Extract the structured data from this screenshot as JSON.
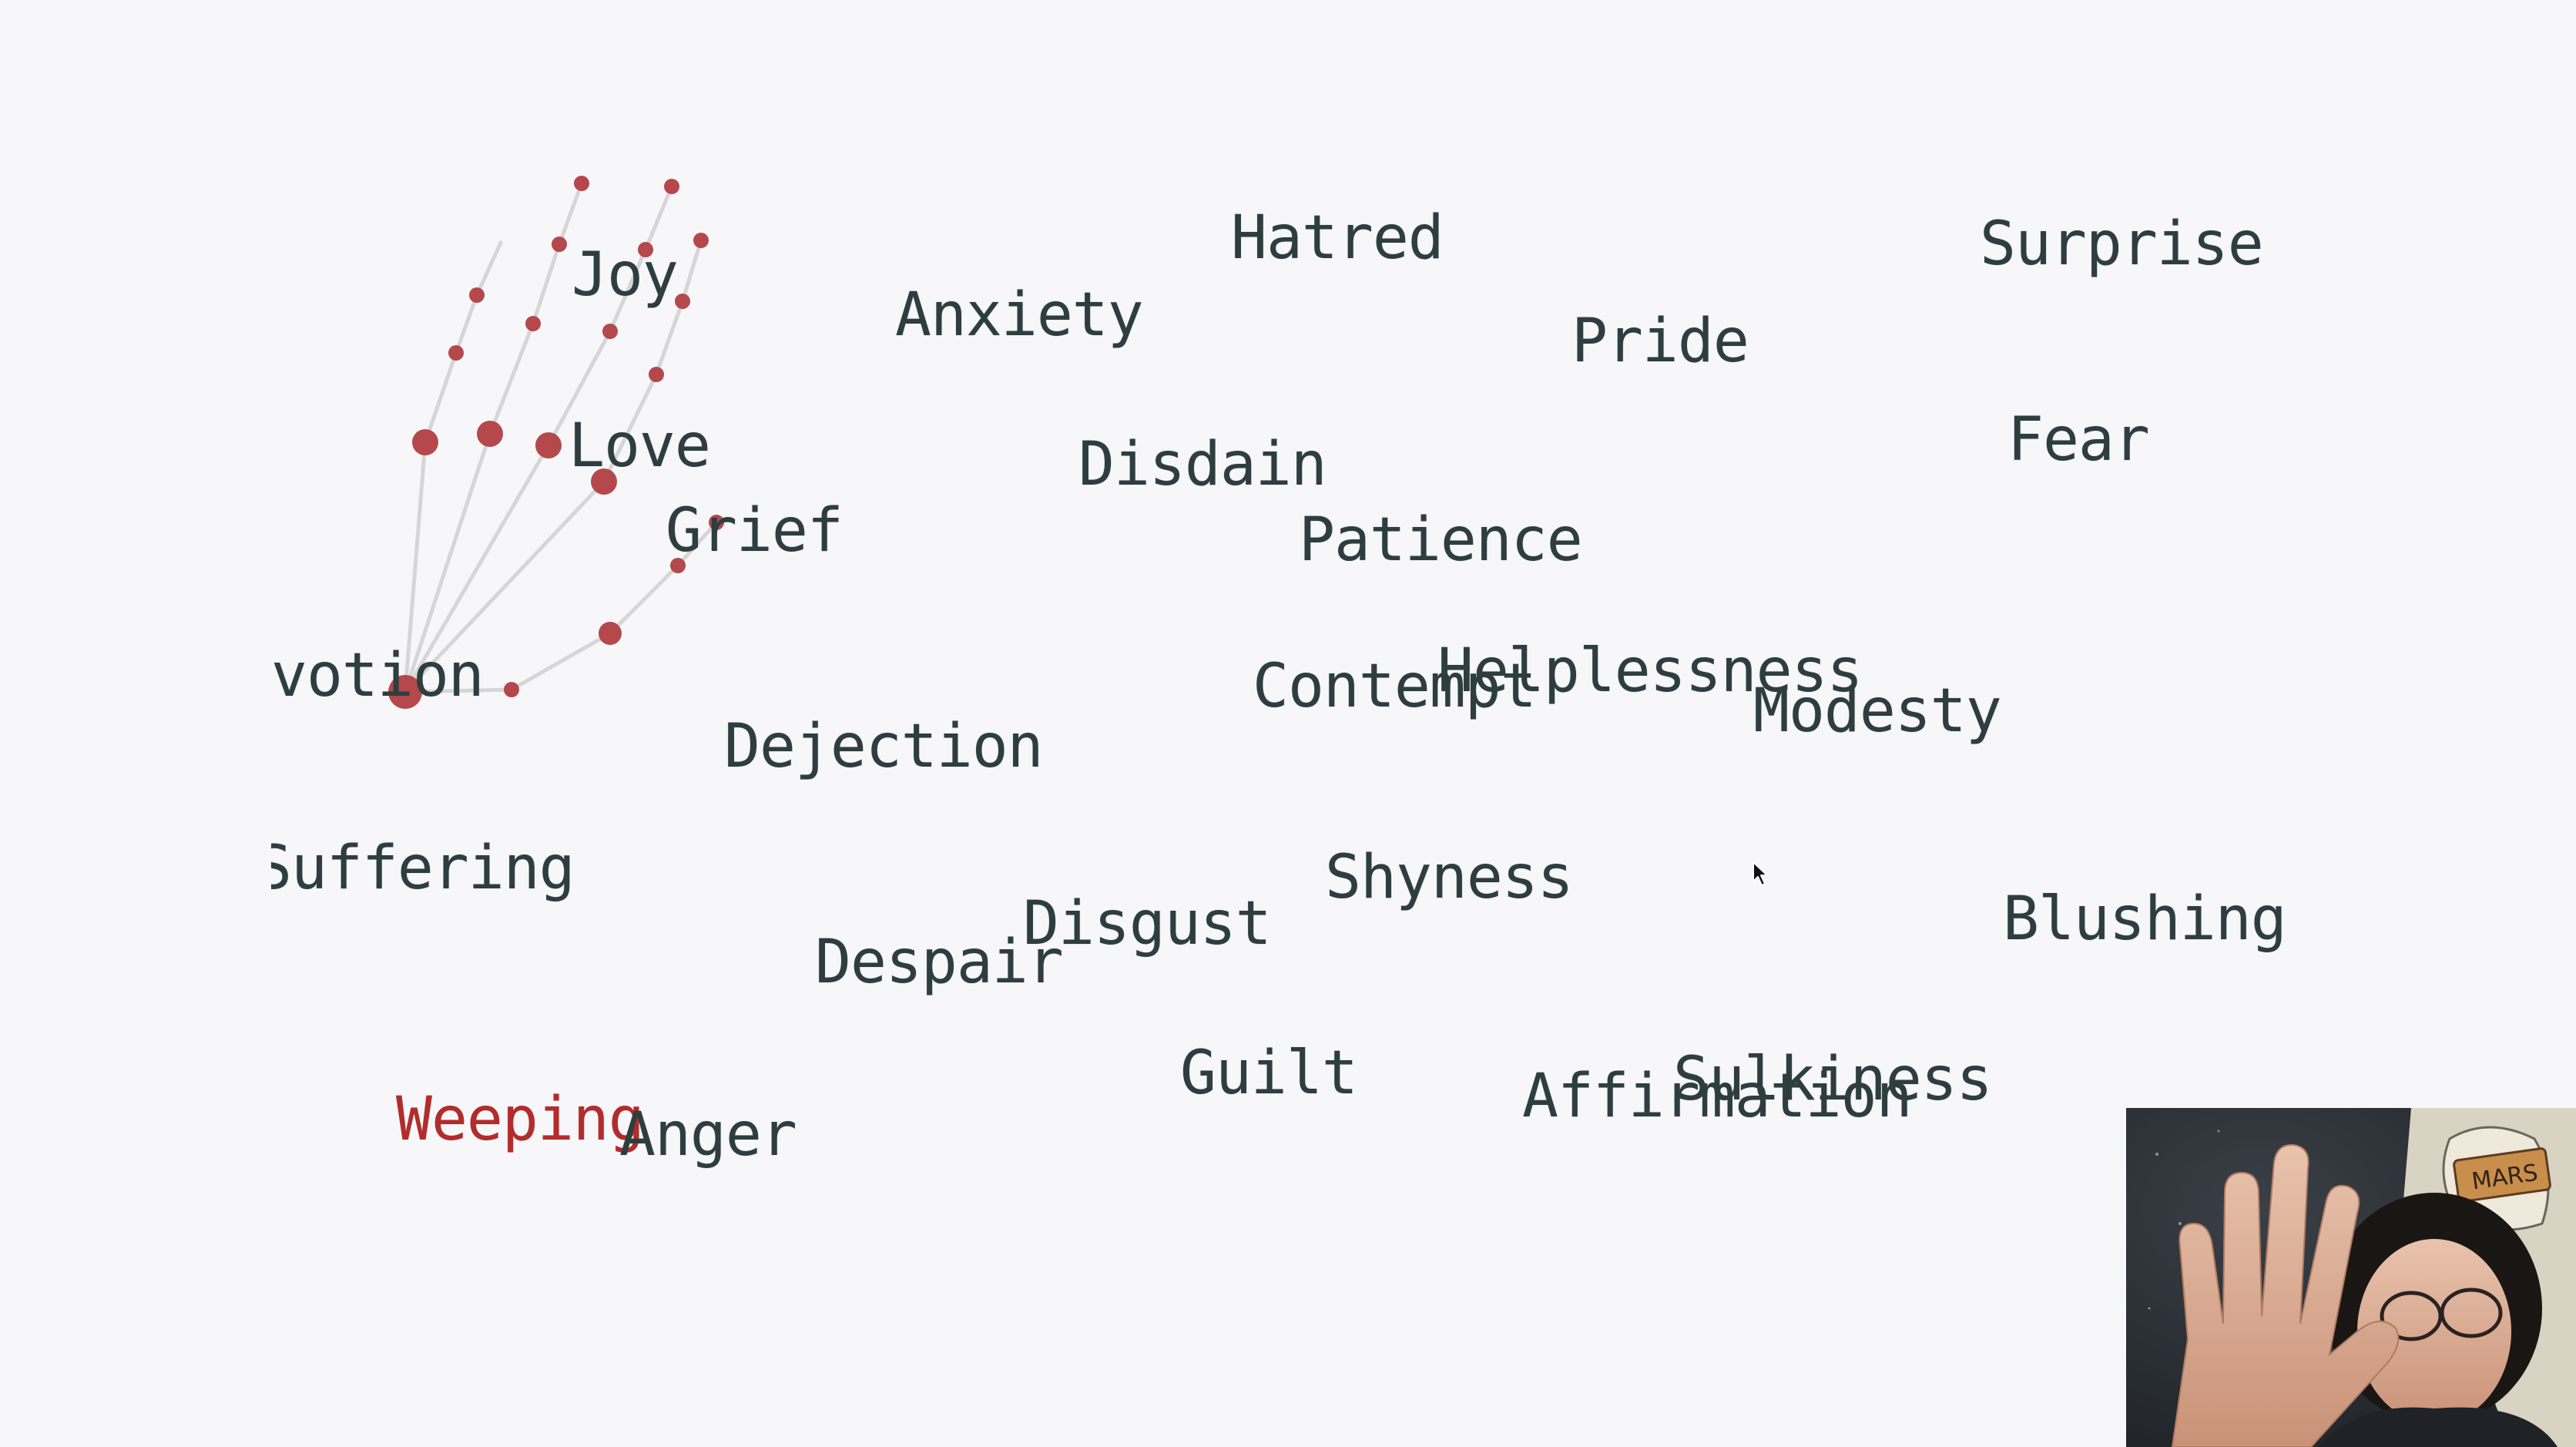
{
  "words": [
    {
      "id": "joy",
      "text": "Joy",
      "state": "default"
    },
    {
      "id": "anxiety",
      "text": "Anxiety",
      "state": "default"
    },
    {
      "id": "hatred",
      "text": "Hatred",
      "state": "default"
    },
    {
      "id": "surprise",
      "text": "Surprise",
      "state": "default"
    },
    {
      "id": "pride",
      "text": "Pride",
      "state": "default"
    },
    {
      "id": "love",
      "text": "Love",
      "state": "default"
    },
    {
      "id": "disdain",
      "text": "Disdain",
      "state": "default"
    },
    {
      "id": "fear",
      "text": "Fear",
      "state": "default"
    },
    {
      "id": "grief",
      "text": "Grief",
      "state": "default"
    },
    {
      "id": "patience",
      "text": "Patience",
      "state": "default"
    },
    {
      "id": "devotion",
      "text": "votion",
      "state": "default"
    },
    {
      "id": "contempt",
      "text": "Contempt",
      "state": "default"
    },
    {
      "id": "helplessness",
      "text": "Helplessness",
      "state": "default"
    },
    {
      "id": "modesty",
      "text": "Modesty",
      "state": "default"
    },
    {
      "id": "dejection",
      "text": "Dejection",
      "state": "default"
    },
    {
      "id": "suffering",
      "text": "Suffering",
      "state": "default"
    },
    {
      "id": "shyness",
      "text": "Shyness",
      "state": "default"
    },
    {
      "id": "disgust",
      "text": "Disgust",
      "state": "default"
    },
    {
      "id": "blushing",
      "text": "Blushing",
      "state": "default"
    },
    {
      "id": "despair",
      "text": "Despair",
      "state": "default"
    },
    {
      "id": "guilt",
      "text": "Guilt",
      "state": "default"
    },
    {
      "id": "sulkiness",
      "text": "Sulkiness",
      "state": "default"
    },
    {
      "id": "affirmation",
      "text": "Affirmation",
      "state": "default"
    },
    {
      "id": "weeping",
      "text": "Weeping",
      "state": "active"
    },
    {
      "id": "anger",
      "text": "Anger",
      "state": "default"
    }
  ],
  "colors": {
    "background": "#f7f7fa",
    "word": "#2e3e3f",
    "active_word": "#b42b2b",
    "landmark": "#b5484b",
    "skeleton": "#d6d6d8"
  },
  "hand_overlay": {
    "icon": "hand-landmark-skeleton"
  },
  "webcam": {
    "sign_text": "MARS",
    "icon": "webcam-preview"
  }
}
